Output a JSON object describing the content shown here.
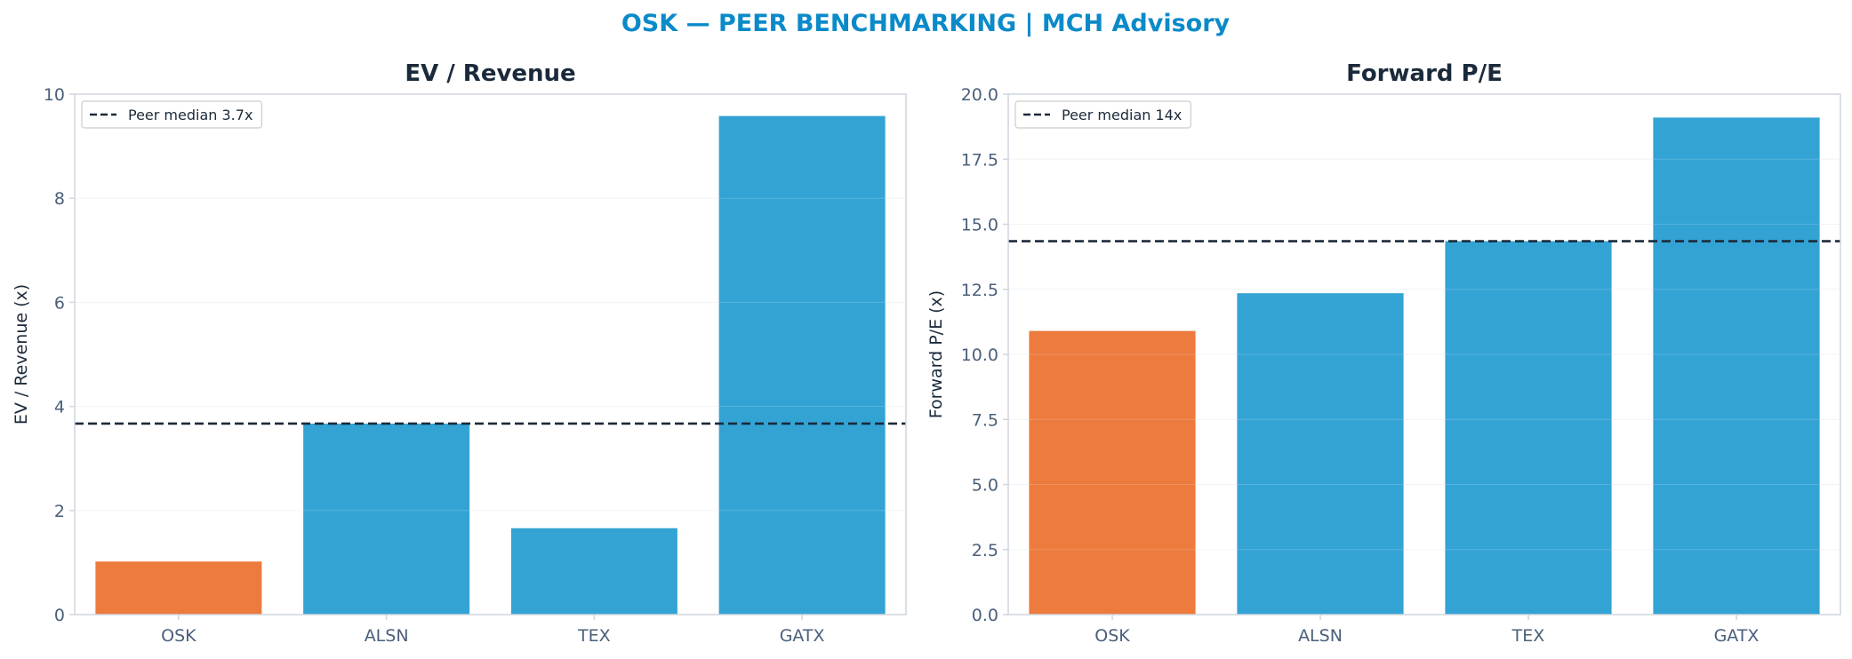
{
  "suptitle": "OSK — PEER BENCHMARKING | MCH Advisory",
  "colors": {
    "title": "#0b8ac9",
    "axis_title": "#1b2a3a",
    "tick_text": "#4a607a",
    "spine": "#cfd6de",
    "grid": "#eef1f4",
    "highlight_bar": "#ed7b3e",
    "peer_bar": "#33a3d4",
    "median_line": "#1b2a3a"
  },
  "chart_data": [
    {
      "type": "bar",
      "title": "EV / Revenue",
      "xlabel": "",
      "ylabel": "EV / Revenue (x)",
      "categories": [
        "OSK",
        "ALSN",
        "TEX",
        "GATX"
      ],
      "values": [
        1.02,
        3.67,
        1.66,
        9.58
      ],
      "highlight": "OSK",
      "ylim": [
        0,
        10
      ],
      "yticks": [
        0,
        2,
        4,
        6,
        8,
        10
      ],
      "ytick_labels": [
        "0",
        "2",
        "4",
        "6",
        "8",
        "10"
      ],
      "reference_line": {
        "value": 3.67,
        "style": "dashed",
        "label": "Peer median 3.7x"
      },
      "legend_position": "top-left",
      "grid": true
    },
    {
      "type": "bar",
      "title": "Forward P/E",
      "xlabel": "",
      "ylabel": "Forward P/E (x)",
      "categories": [
        "OSK",
        "ALSN",
        "TEX",
        "GATX"
      ],
      "values": [
        10.9,
        12.35,
        14.35,
        19.1
      ],
      "highlight": "OSK",
      "ylim": [
        0,
        20
      ],
      "yticks": [
        0,
        2.5,
        5,
        7.5,
        10,
        12.5,
        15,
        17.5,
        20
      ],
      "ytick_labels": [
        "0.0",
        "2.5",
        "5.0",
        "7.5",
        "10.0",
        "12.5",
        "15.0",
        "17.5",
        "20.0"
      ],
      "reference_line": {
        "value": 14.35,
        "style": "dashed",
        "label": "Peer median 14x"
      },
      "legend_position": "top-left",
      "grid": true
    }
  ]
}
